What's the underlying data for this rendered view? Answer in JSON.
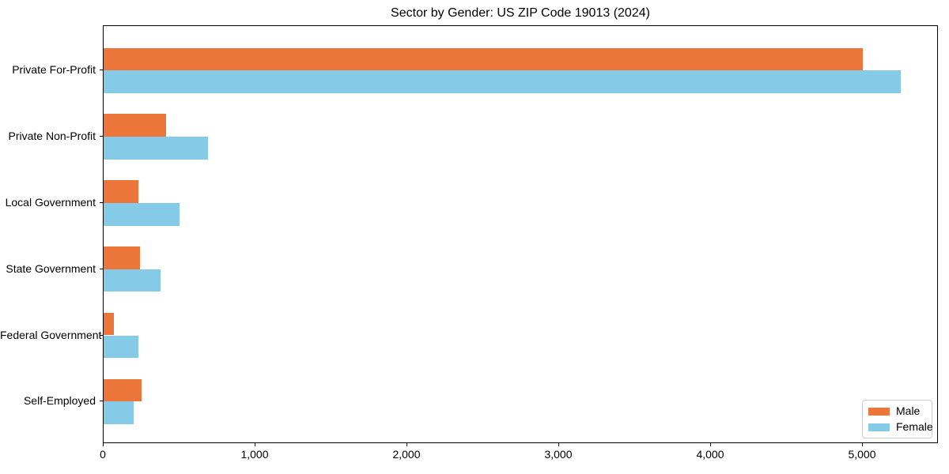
{
  "chart_data": {
    "type": "bar",
    "orientation": "horizontal",
    "title": "Sector by Gender: US ZIP Code 19013 (2024)",
    "categories": [
      "Private For-Profit",
      "Private Non-Profit",
      "Local Government",
      "State Government",
      "Federal Government",
      "Self-Employed"
    ],
    "series": [
      {
        "name": "Male",
        "color": "#EC763A",
        "values": [
          5000,
          410,
          230,
          240,
          70,
          250
        ]
      },
      {
        "name": "Female",
        "color": "#85CBE8",
        "values": [
          5250,
          690,
          500,
          375,
          230,
          200
        ]
      }
    ],
    "xlabel": "",
    "ylabel": "",
    "xlim": [
      0,
      5500
    ],
    "xticks": [
      0,
      1000,
      2000,
      3000,
      4000,
      5000
    ],
    "xtick_labels": [
      "0",
      "1,000",
      "2,000",
      "3,000",
      "4,000",
      "5,000"
    ],
    "grid": false,
    "legend_position": "lower right",
    "colors": {
      "spine": "#000000",
      "legend_border": "#cccccc"
    }
  }
}
